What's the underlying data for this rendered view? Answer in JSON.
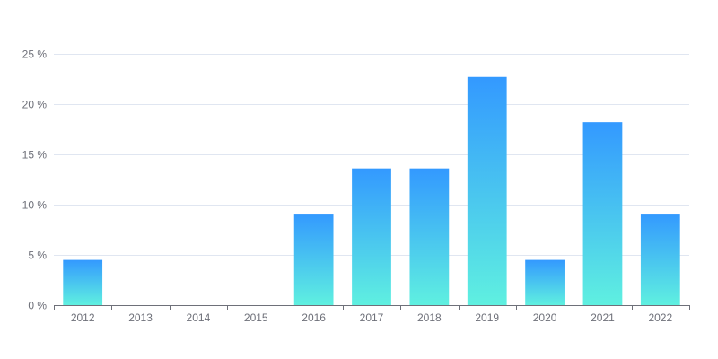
{
  "chart_data": {
    "type": "bar",
    "title": "",
    "xlabel": "",
    "ylabel": "",
    "categories": [
      "2012",
      "2013",
      "2014",
      "2015",
      "2016",
      "2017",
      "2018",
      "2019",
      "2020",
      "2021",
      "2022"
    ],
    "values": [
      4.5,
      0,
      0,
      0,
      9.1,
      13.6,
      13.6,
      22.7,
      4.5,
      18.2,
      9.1
    ],
    "ylim": [
      0,
      25
    ],
    "yticks": [
      0,
      5,
      10,
      15,
      20,
      25
    ],
    "ytick_suffix": " %",
    "grid": true,
    "legend": "none",
    "colors": {
      "bar_top": "#3399ff",
      "bar_bottom": "#5ff0e0",
      "grid": "#e0e6f1",
      "axis": "#6e7079",
      "text": "#6e7079"
    }
  }
}
